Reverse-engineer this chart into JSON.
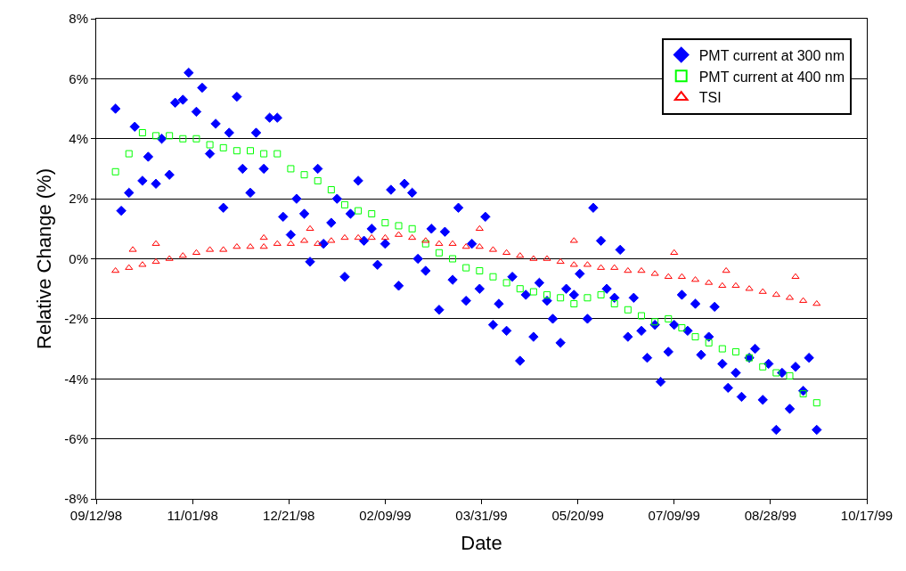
{
  "chart_data": {
    "type": "scatter",
    "xlabel": "Date",
    "ylabel": "Relative Change (%)",
    "xlim": [
      "1998-09-12",
      "1999-10-17"
    ],
    "xticks": [
      {
        "value": "1998-09-12",
        "label": "09/12/98"
      },
      {
        "value": "1998-11-01",
        "label": "11/01/98"
      },
      {
        "value": "1998-12-21",
        "label": "12/21/98"
      },
      {
        "value": "1999-02-09",
        "label": "02/09/99"
      },
      {
        "value": "1999-03-31",
        "label": "03/31/99"
      },
      {
        "value": "1999-05-20",
        "label": "05/20/99"
      },
      {
        "value": "1999-07-09",
        "label": "07/09/99"
      },
      {
        "value": "1999-08-28",
        "label": "08/28/99"
      },
      {
        "value": "1999-10-17",
        "label": "10/17/99"
      }
    ],
    "ylim": [
      -8,
      8
    ],
    "yticks": [
      {
        "value": -8,
        "label": "-8%"
      },
      {
        "value": -6,
        "label": "-6%"
      },
      {
        "value": -4,
        "label": "-4%"
      },
      {
        "value": -2,
        "label": "-2%"
      },
      {
        "value": 0,
        "label": "0%"
      },
      {
        "value": 2,
        "label": "2%"
      },
      {
        "value": 4,
        "label": "4%"
      },
      {
        "value": 6,
        "label": "6%"
      },
      {
        "value": 8,
        "label": "8%"
      }
    ],
    "grid": "y",
    "legend": "top right",
    "series": [
      {
        "name": "PMT current at 300 nm",
        "color": "#0000ff",
        "marker": "diamond",
        "x": [
          "1998-09-22",
          "1998-09-25",
          "1998-09-29",
          "1998-10-02",
          "1998-10-06",
          "1998-10-09",
          "1998-10-13",
          "1998-10-16",
          "1998-10-20",
          "1998-10-23",
          "1998-10-27",
          "1998-10-30",
          "1998-11-03",
          "1998-11-06",
          "1998-11-10",
          "1998-11-13",
          "1998-11-17",
          "1998-11-20",
          "1998-11-24",
          "1998-11-27",
          "1998-12-01",
          "1998-12-04",
          "1998-12-08",
          "1998-12-11",
          "1998-12-15",
          "1998-12-18",
          "1998-12-22",
          "1998-12-25",
          "1998-12-29",
          "1999-01-01",
          "1999-01-05",
          "1999-01-08",
          "1999-01-12",
          "1999-01-15",
          "1999-01-19",
          "1999-01-22",
          "1999-01-26",
          "1999-01-29",
          "1999-02-02",
          "1999-02-05",
          "1999-02-09",
          "1999-02-12",
          "1999-02-16",
          "1999-02-19",
          "1999-02-23",
          "1999-02-26",
          "1999-03-02",
          "1999-03-05",
          "1999-03-09",
          "1999-03-12",
          "1999-03-16",
          "1999-03-19",
          "1999-03-23",
          "1999-03-26",
          "1999-03-30",
          "1999-04-02",
          "1999-04-06",
          "1999-04-09",
          "1999-04-13",
          "1999-04-16",
          "1999-04-20",
          "1999-04-23",
          "1999-04-27",
          "1999-04-30",
          "1999-05-04",
          "1999-05-07",
          "1999-05-11",
          "1999-05-14",
          "1999-05-18",
          "1999-05-21",
          "1999-05-25",
          "1999-05-28",
          "1999-06-01",
          "1999-06-04",
          "1999-06-08",
          "1999-06-11",
          "1999-06-15",
          "1999-06-18",
          "1999-06-22",
          "1999-06-25",
          "1999-06-29",
          "1999-07-02",
          "1999-07-06",
          "1999-07-09",
          "1999-07-13",
          "1999-07-16",
          "1999-07-20",
          "1999-07-23",
          "1999-07-27",
          "1999-07-30",
          "1999-08-03",
          "1999-08-06",
          "1999-08-10",
          "1999-08-13",
          "1999-08-17",
          "1999-08-20",
          "1999-08-24",
          "1999-08-27",
          "1999-08-31",
          "1999-09-03",
          "1999-09-07",
          "1999-09-10",
          "1999-09-14",
          "1999-09-17",
          "1999-09-21"
        ],
        "values": [
          5.0,
          1.6,
          2.2,
          4.4,
          2.6,
          3.4,
          2.5,
          4.0,
          2.8,
          5.2,
          5.3,
          6.2,
          4.9,
          5.7,
          3.5,
          4.5,
          1.7,
          4.2,
          5.4,
          3.0,
          2.2,
          4.2,
          3.0,
          4.7,
          4.7,
          1.4,
          0.8,
          2.0,
          1.5,
          -0.1,
          3.0,
          0.5,
          1.2,
          2.0,
          -0.6,
          1.5,
          2.6,
          0.6,
          1.0,
          -0.2,
          0.5,
          2.3,
          -0.9,
          2.5,
          2.2,
          0.0,
          -0.4,
          1.0,
          -1.7,
          0.9,
          -0.7,
          1.7,
          -1.4,
          0.5,
          -1.0,
          1.4,
          -2.2,
          -1.5,
          -2.4,
          -0.6,
          -3.4,
          -1.2,
          -2.6,
          -0.8,
          -1.4,
          -2.0,
          -2.8,
          -1.0,
          -1.2,
          -0.5,
          -2.0,
          1.7,
          0.6,
          -1.0,
          -1.3,
          0.3,
          -2.6,
          -1.3,
          -2.4,
          -3.3,
          -2.2,
          -4.1,
          -3.1,
          -2.2,
          -1.2,
          -2.4,
          -1.5,
          -3.2,
          -2.6,
          -1.6,
          -3.5,
          -4.3,
          -3.8,
          -4.6,
          -3.3,
          -3.0,
          -4.7,
          -3.5,
          -5.7,
          -3.8,
          -5.0,
          -3.6,
          -4.4,
          -3.3,
          -5.7
        ]
      },
      {
        "name": "PMT current at 400 nm",
        "color": "#00ff00",
        "marker": "square",
        "x": [
          "1998-09-22",
          "1998-09-29",
          "1998-10-06",
          "1998-10-13",
          "1998-10-20",
          "1998-10-27",
          "1998-11-03",
          "1998-11-10",
          "1998-11-17",
          "1998-11-24",
          "1998-12-01",
          "1998-12-08",
          "1998-12-15",
          "1998-12-22",
          "1998-12-29",
          "1999-01-05",
          "1999-01-12",
          "1999-01-19",
          "1999-01-26",
          "1999-02-02",
          "1999-02-09",
          "1999-02-16",
          "1999-02-23",
          "1999-03-02",
          "1999-03-09",
          "1999-03-16",
          "1999-03-23",
          "1999-03-30",
          "1999-04-06",
          "1999-04-13",
          "1999-04-20",
          "1999-04-27",
          "1999-05-04",
          "1999-05-11",
          "1999-05-18",
          "1999-05-25",
          "1999-06-01",
          "1999-06-08",
          "1999-06-15",
          "1999-06-22",
          "1999-06-29",
          "1999-07-06",
          "1999-07-13",
          "1999-07-20",
          "1999-07-27",
          "1999-08-03",
          "1999-08-10",
          "1999-08-17",
          "1999-08-24",
          "1999-08-31",
          "1999-09-07",
          "1999-09-14",
          "1999-09-21"
        ],
        "values": [
          2.9,
          3.5,
          4.2,
          4.1,
          4.1,
          4.0,
          4.0,
          3.8,
          3.7,
          3.6,
          3.6,
          3.5,
          3.5,
          3.0,
          2.8,
          2.6,
          2.3,
          1.8,
          1.6,
          1.5,
          1.2,
          1.1,
          1.0,
          0.5,
          0.2,
          0.0,
          -0.3,
          -0.4,
          -0.6,
          -0.8,
          -1.0,
          -1.1,
          -1.2,
          -1.3,
          -1.5,
          -1.3,
          -1.2,
          -1.5,
          -1.7,
          -1.9,
          -2.1,
          -2.0,
          -2.3,
          -2.6,
          -2.8,
          -3.0,
          -3.1,
          -3.3,
          -3.6,
          -3.8,
          -3.9,
          -4.5,
          -4.8
        ]
      },
      {
        "name": "TSI",
        "color": "#ff0000",
        "marker": "triangle",
        "x": [
          "1998-09-22",
          "1998-09-29",
          "1998-10-06",
          "1998-10-13",
          "1998-10-20",
          "1998-10-27",
          "1998-11-03",
          "1998-11-10",
          "1998-11-17",
          "1998-11-24",
          "1998-12-01",
          "1998-12-08",
          "1998-12-15",
          "1998-12-22",
          "1998-12-29",
          "1999-01-05",
          "1999-01-12",
          "1999-01-19",
          "1999-01-26",
          "1999-02-02",
          "1999-02-09",
          "1999-02-16",
          "1999-02-23",
          "1999-03-02",
          "1999-03-09",
          "1999-03-16",
          "1999-03-23",
          "1999-03-30",
          "1999-04-06",
          "1999-04-13",
          "1999-04-20",
          "1999-04-27",
          "1999-05-04",
          "1999-05-11",
          "1999-05-18",
          "1999-05-25",
          "1999-06-01",
          "1999-06-08",
          "1999-06-15",
          "1999-06-22",
          "1999-06-29",
          "1999-07-06",
          "1999-07-13",
          "1999-07-20",
          "1999-07-27",
          "1999-08-03",
          "1999-08-10",
          "1999-08-17",
          "1999-08-24",
          "1999-08-31",
          "1999-09-07",
          "1999-09-14",
          "1999-09-21",
          "1998-10-01",
          "1998-10-13",
          "1998-12-08",
          "1999-01-01",
          "1999-03-30",
          "1999-05-18",
          "1999-07-09",
          "1999-08-05",
          "1999-09-10"
        ],
        "values": [
          -0.4,
          -0.3,
          -0.2,
          -0.1,
          0.0,
          0.1,
          0.2,
          0.3,
          0.3,
          0.4,
          0.4,
          0.4,
          0.5,
          0.5,
          0.6,
          0.5,
          0.6,
          0.7,
          0.7,
          0.7,
          0.7,
          0.8,
          0.7,
          0.6,
          0.5,
          0.5,
          0.4,
          0.4,
          0.3,
          0.2,
          0.1,
          0.0,
          0.0,
          -0.1,
          -0.2,
          -0.2,
          -0.3,
          -0.3,
          -0.4,
          -0.4,
          -0.5,
          -0.6,
          -0.6,
          -0.7,
          -0.8,
          -0.9,
          -0.9,
          -1.0,
          -1.1,
          -1.2,
          -1.3,
          -1.4,
          -1.5,
          0.3,
          0.5,
          0.7,
          1.0,
          1.0,
          0.6,
          0.2,
          -0.4,
          -0.6
        ]
      }
    ]
  }
}
